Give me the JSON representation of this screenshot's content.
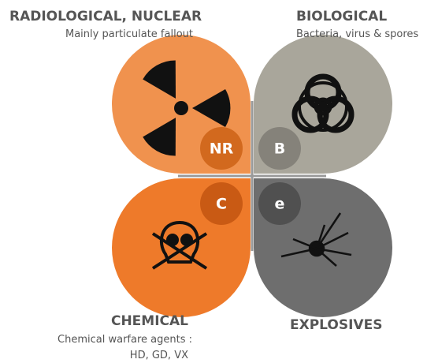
{
  "quadrants": [
    {
      "title": "RADIOLOGICAL, NUCLEAR",
      "subtitle": [
        "Mainly particulate fallout"
      ],
      "badge": "NR"
    },
    {
      "title": "BIOLOGICAL",
      "subtitle": [
        "Bacteria, virus & spores"
      ],
      "badge": "B"
    },
    {
      "title": "CHEMICAL",
      "subtitle": [
        "Chemical warfare agents :",
        "HD, GD, VX"
      ],
      "badge": "C"
    },
    {
      "title": "EXPLOSIVES",
      "subtitle": [],
      "badge": "e"
    }
  ]
}
